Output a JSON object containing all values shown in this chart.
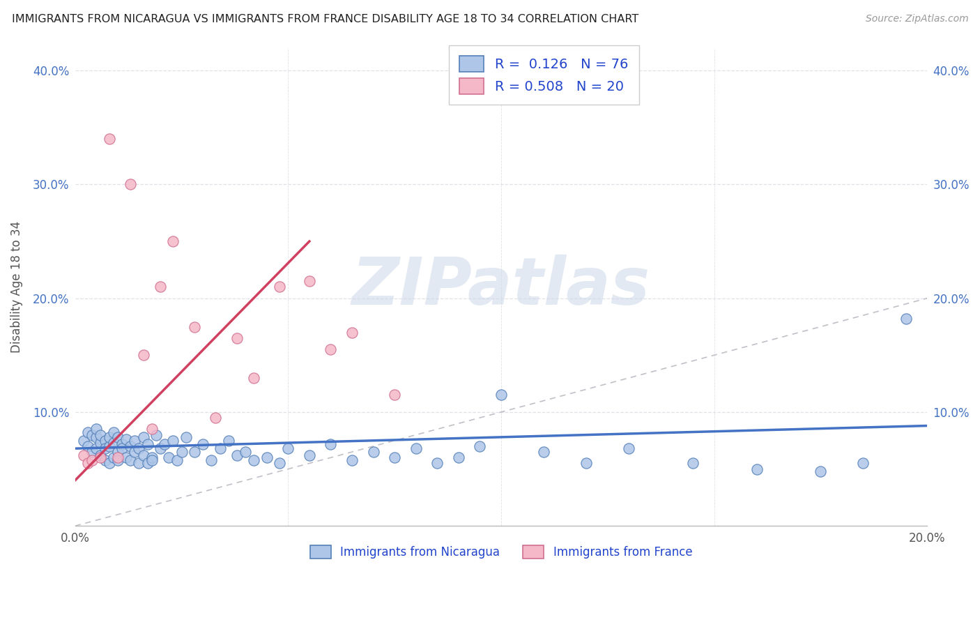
{
  "title": "IMMIGRANTS FROM NICARAGUA VS IMMIGRANTS FROM FRANCE DISABILITY AGE 18 TO 34 CORRELATION CHART",
  "source": "Source: ZipAtlas.com",
  "legend_label_nicaragua": "Immigrants from Nicaragua",
  "legend_label_france": "Immigrants from France",
  "ylabel": "Disability Age 18 to 34",
  "xlim": [
    0.0,
    0.2
  ],
  "ylim": [
    0.0,
    0.42
  ],
  "xticks": [
    0.0,
    0.05,
    0.1,
    0.15,
    0.2
  ],
  "yticks": [
    0.0,
    0.1,
    0.2,
    0.3,
    0.4
  ],
  "xtick_labels_bottom": [
    "0.0%",
    "",
    "",
    "",
    "20.0%"
  ],
  "ytick_labels_left": [
    "",
    "10.0%",
    "20.0%",
    "30.0%",
    "40.0%"
  ],
  "ytick_labels_right": [
    "",
    "10.0%",
    "20.0%",
    "30.0%",
    "40.0%"
  ],
  "legend_blue_R": "0.126",
  "legend_blue_N": "76",
  "legend_pink_R": "0.508",
  "legend_pink_N": "20",
  "blue_face_color": "#aec6e8",
  "blue_edge_color": "#5580b8",
  "pink_face_color": "#f5b8c8",
  "pink_edge_color": "#d07090",
  "blue_line_color": "#4472c4",
  "pink_line_color": "#d04060",
  "grid_color": "#e0e0e8",
  "diag_color": "#c0c0c8",
  "watermark_text": "ZIPatlas",
  "watermark_color": "#ccd8e8",
  "blue_scatter_x": [
    0.002,
    0.003,
    0.003,
    0.004,
    0.004,
    0.005,
    0.005,
    0.005,
    0.006,
    0.006,
    0.006,
    0.007,
    0.007,
    0.007,
    0.008,
    0.008,
    0.008,
    0.009,
    0.009,
    0.009,
    0.01,
    0.01,
    0.01,
    0.011,
    0.011,
    0.012,
    0.012,
    0.013,
    0.013,
    0.014,
    0.014,
    0.015,
    0.015,
    0.016,
    0.016,
    0.017,
    0.017,
    0.018,
    0.018,
    0.019,
    0.02,
    0.021,
    0.022,
    0.023,
    0.024,
    0.025,
    0.026,
    0.028,
    0.03,
    0.032,
    0.034,
    0.036,
    0.038,
    0.04,
    0.042,
    0.045,
    0.048,
    0.05,
    0.055,
    0.06,
    0.065,
    0.07,
    0.075,
    0.08,
    0.085,
    0.09,
    0.095,
    0.1,
    0.11,
    0.12,
    0.13,
    0.145,
    0.16,
    0.175,
    0.185,
    0.195
  ],
  "blue_scatter_y": [
    0.075,
    0.082,
    0.07,
    0.08,
    0.065,
    0.078,
    0.085,
    0.068,
    0.073,
    0.062,
    0.08,
    0.058,
    0.075,
    0.068,
    0.055,
    0.07,
    0.078,
    0.06,
    0.073,
    0.082,
    0.065,
    0.078,
    0.058,
    0.072,
    0.068,
    0.06,
    0.076,
    0.058,
    0.07,
    0.065,
    0.075,
    0.055,
    0.068,
    0.062,
    0.078,
    0.055,
    0.072,
    0.06,
    0.058,
    0.08,
    0.068,
    0.072,
    0.06,
    0.075,
    0.058,
    0.065,
    0.078,
    0.065,
    0.072,
    0.058,
    0.068,
    0.075,
    0.062,
    0.065,
    0.058,
    0.06,
    0.055,
    0.068,
    0.062,
    0.072,
    0.058,
    0.065,
    0.06,
    0.068,
    0.055,
    0.06,
    0.07,
    0.115,
    0.065,
    0.055,
    0.068,
    0.055,
    0.05,
    0.048,
    0.055,
    0.182
  ],
  "pink_scatter_x": [
    0.002,
    0.003,
    0.004,
    0.006,
    0.008,
    0.01,
    0.013,
    0.016,
    0.018,
    0.02,
    0.023,
    0.028,
    0.033,
    0.038,
    0.042,
    0.048,
    0.055,
    0.06,
    0.065,
    0.075
  ],
  "pink_scatter_y": [
    0.062,
    0.055,
    0.058,
    0.06,
    0.34,
    0.06,
    0.3,
    0.15,
    0.085,
    0.21,
    0.25,
    0.175,
    0.095,
    0.165,
    0.13,
    0.21,
    0.215,
    0.155,
    0.17,
    0.115
  ],
  "blue_trend_x0": 0.0,
  "blue_trend_x1": 0.2,
  "blue_trend_y0": 0.068,
  "blue_trend_y1": 0.088,
  "pink_trend_x0": 0.0,
  "pink_trend_x1": 0.055,
  "pink_trend_y0": 0.04,
  "pink_trend_y1": 0.25
}
